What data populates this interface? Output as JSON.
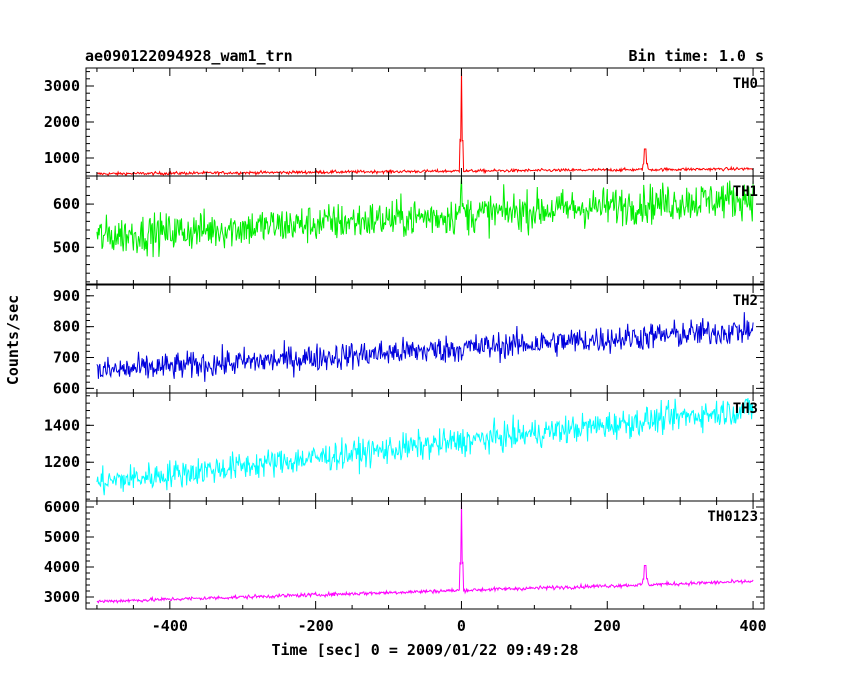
{
  "chart_data": {
    "type": "line",
    "title": "ae090122094928_wam1_trn",
    "subtitle": "Bin time: 1.0 s",
    "xlabel": "Time [sec] 0 = 2009/01/22 09:49:28",
    "ylabel": "Counts/sec",
    "xlim": [
      -515,
      415
    ],
    "xticks": [
      -400,
      -200,
      0,
      200,
      400
    ],
    "x_range": [
      -500,
      400
    ],
    "panels": [
      {
        "name": "TH0",
        "color": "#ff0000",
        "ylim": [
          500,
          3500
        ],
        "yticks": [
          1000,
          2000,
          3000
        ],
        "baseline_start": 560,
        "baseline_end": 700,
        "noise": 30,
        "peaks": [
          {
            "x": 0,
            "y": 3500,
            "width": 1
          },
          {
            "x": 252,
            "y": 1250,
            "width": 2
          }
        ]
      },
      {
        "name": "TH1",
        "color": "#00ee00",
        "ylim": [
          415,
          665
        ],
        "yticks": [
          500,
          600
        ],
        "baseline_start": 525,
        "baseline_end": 615,
        "noise": 32,
        "peaks": [
          {
            "x": 0,
            "y": 665,
            "width": 1
          }
        ]
      },
      {
        "name": "TH2",
        "color": "#0000dd",
        "ylim": [
          585,
          935
        ],
        "yticks": [
          600,
          700,
          800,
          900
        ],
        "baseline_start": 655,
        "baseline_end": 790,
        "noise": 32,
        "peaks": []
      },
      {
        "name": "TH3",
        "color": "#00ffff",
        "ylim": [
          990,
          1575
        ],
        "yticks": [
          1200,
          1400
        ],
        "baseline_start": 1090,
        "baseline_end": 1490,
        "noise": 55,
        "peaks": []
      },
      {
        "name": "TH0123",
        "color": "#ff00ff",
        "ylim": [
          2600,
          6200
        ],
        "yticks": [
          3000,
          4000,
          5000,
          6000
        ],
        "baseline_start": 2850,
        "baseline_end": 3520,
        "noise": 45,
        "peaks": [
          {
            "x": 0,
            "y": 6200,
            "width": 1
          },
          {
            "x": 252,
            "y": 4050,
            "width": 2
          }
        ]
      }
    ]
  }
}
